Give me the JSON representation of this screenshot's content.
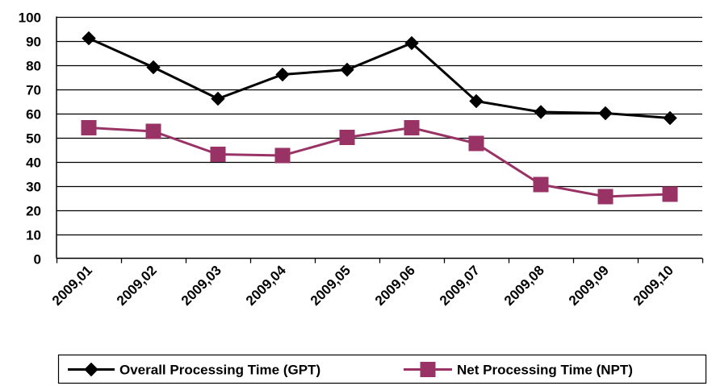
{
  "chart_data": {
    "type": "line",
    "categories": [
      "2009,01",
      "2009,02",
      "2009,03",
      "2009,04",
      "2009,05",
      "2009,06",
      "2009,07",
      "2009,08",
      "2009,09",
      "2009,10"
    ],
    "series": [
      {
        "name": "Overall Processing Time (GPT)",
        "values": [
          91,
          79,
          66,
          76,
          78,
          89,
          65,
          60.5,
          60,
          58
        ],
        "color": "#000000",
        "marker": "diamond"
      },
      {
        "name": "Net Processing Time (NPT)",
        "values": [
          54,
          52.5,
          43,
          42.5,
          50,
          54,
          47.5,
          30.5,
          25.5,
          26.5
        ],
        "color": "#993366",
        "marker": "square"
      }
    ],
    "y_ticks": [
      "0",
      "10",
      "20",
      "30",
      "40",
      "50",
      "60",
      "70",
      "80",
      "90",
      "100"
    ],
    "ylim": [
      0,
      100
    ],
    "grid": true,
    "legend_position": "bottom",
    "title": "",
    "xlabel": "",
    "ylabel": ""
  }
}
